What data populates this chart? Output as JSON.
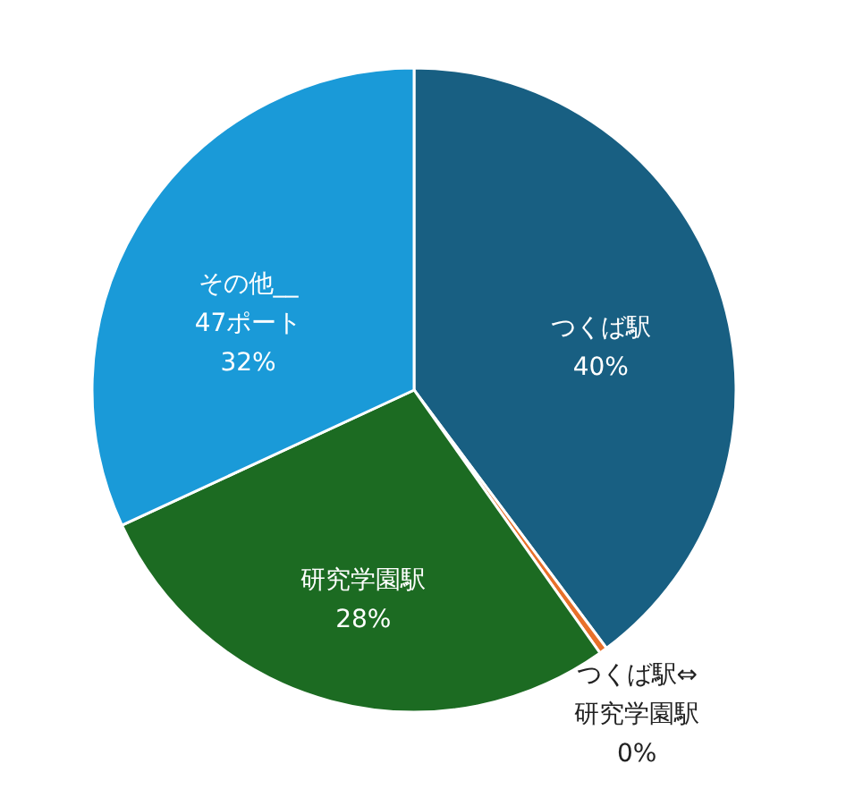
{
  "chart_data": {
    "type": "pie",
    "categories": [
      "つくば駅",
      "つくば駅⇔研究学園駅",
      "研究学園駅",
      "その他__47ポート"
    ],
    "values": [
      39.8,
      0.4,
      27.9,
      31.9
    ],
    "value_labels": [
      "40%",
      "0%",
      "28%",
      "32%"
    ],
    "colors": [
      "#185f82",
      "#e8702a",
      "#1c6b22",
      "#1a9ad8"
    ],
    "legend": false
  }
}
